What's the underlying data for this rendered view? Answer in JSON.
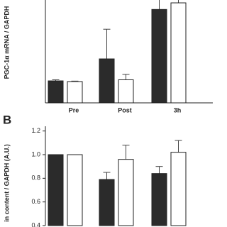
{
  "chart_data": [
    {
      "type": "bar",
      "y_label": "PGC-1α mRNA / GAPDH",
      "categories": [
        "Pre",
        "Post",
        "3h"
      ],
      "series": [
        {
          "color": "#2b2b2b",
          "values": [
            1.0,
            2.0,
            4.25
          ],
          "errors": [
            0.05,
            1.35,
            0.9
          ]
        },
        {
          "color": "#ffffff",
          "values": [
            0.97,
            1.05,
            4.55
          ],
          "errors": [
            0.02,
            0.25,
            0.35
          ]
        }
      ],
      "ylim": [
        0,
        4.68
      ]
    },
    {
      "type": "bar",
      "panel_label": "B",
      "y_label": "in content / GAPDH (A.U.)",
      "series": [
        {
          "color": "#2b2b2b",
          "values": [
            1.0,
            0.79,
            0.84
          ],
          "errors": [
            0,
            0.06,
            0.06
          ]
        },
        {
          "color": "#ffffff",
          "values": [
            1.0,
            0.96,
            1.02
          ],
          "errors": [
            0,
            0.12,
            0.1
          ]
        }
      ],
      "ylim": [
        0.4,
        1.24
      ],
      "yticks": [
        {
          "value": 0.4,
          "label": "0.4"
        },
        0.6,
        0.8,
        {
          "value": 1.0,
          "label": "1.0"
        },
        1.2
      ]
    }
  ]
}
